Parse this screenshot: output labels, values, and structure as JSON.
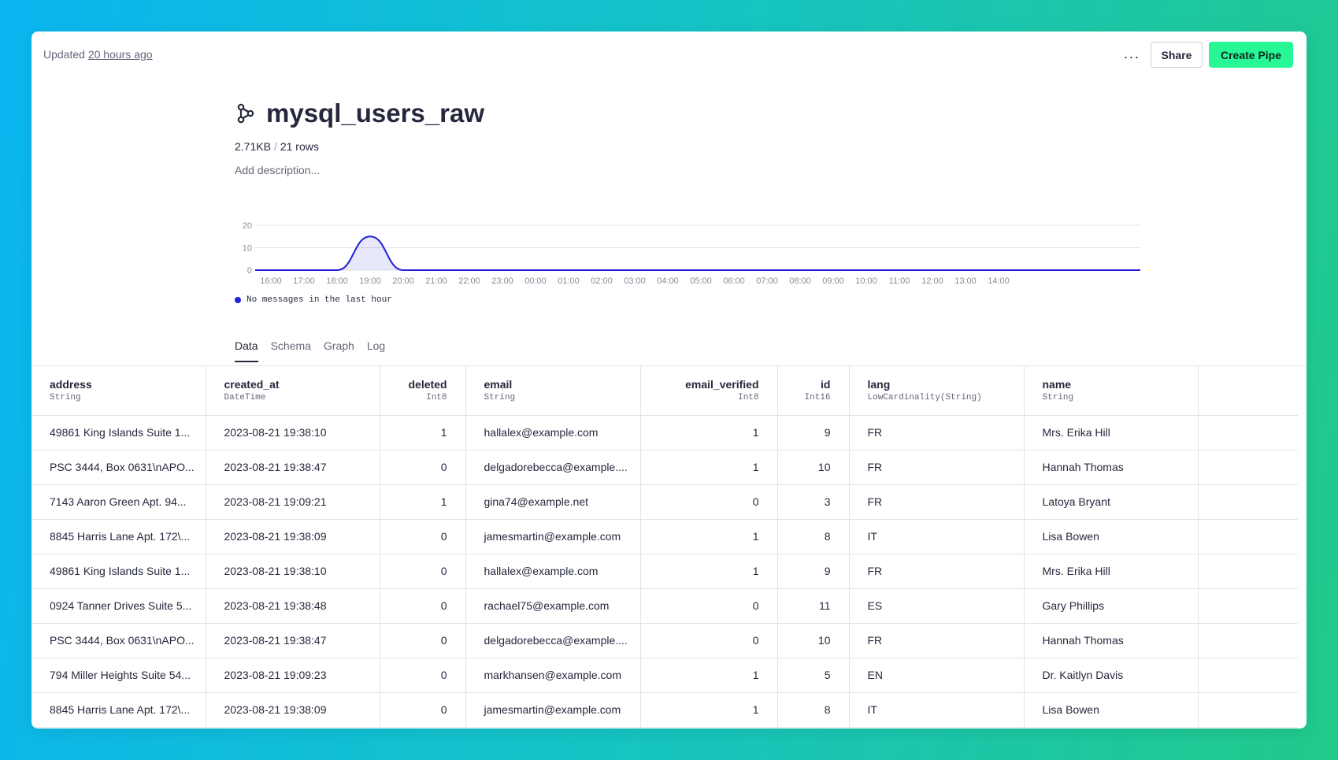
{
  "topbar": {
    "updated_prefix": "Updated",
    "updated_link": "20 hours ago",
    "more_label": "···",
    "share_label": "Share",
    "create_label": "Create Pipe"
  },
  "datasource": {
    "name": "mysql_users_raw",
    "size": "2.71KB",
    "separator": "/",
    "rows": "21 rows",
    "description_placeholder": "Add description..."
  },
  "chart_data": {
    "type": "area",
    "x": [
      "16:00",
      "17:00",
      "18:00",
      "19:00",
      "20:00",
      "21:00",
      "22:00",
      "23:00",
      "00:00",
      "01:00",
      "02:00",
      "03:00",
      "04:00",
      "05:00",
      "06:00",
      "07:00",
      "08:00",
      "09:00",
      "10:00",
      "11:00",
      "12:00",
      "13:00",
      "14:00"
    ],
    "y_ticks": [
      0,
      10,
      20
    ],
    "ylim": [
      0,
      20
    ],
    "series": [
      {
        "values": [
          0,
          0,
          0,
          15,
          0,
          0,
          0,
          0,
          0,
          0,
          0,
          0,
          0,
          0,
          0,
          0,
          0,
          0,
          0,
          0,
          0,
          0,
          0
        ],
        "color": "#2121d9"
      }
    ],
    "grid": true
  },
  "legend": {
    "text": "No messages in the last hour",
    "color": "#2121d9"
  },
  "tabs": [
    {
      "label": "Data",
      "active": true
    },
    {
      "label": "Schema",
      "active": false
    },
    {
      "label": "Graph",
      "active": false
    },
    {
      "label": "Log",
      "active": false
    }
  ],
  "table": {
    "columns": [
      {
        "name": "address",
        "type": "String",
        "align": "left"
      },
      {
        "name": "created_at",
        "type": "DateTime",
        "align": "left"
      },
      {
        "name": "deleted",
        "type": "Int8",
        "align": "right"
      },
      {
        "name": "email",
        "type": "String",
        "align": "left"
      },
      {
        "name": "email_verified",
        "type": "Int8",
        "align": "right"
      },
      {
        "name": "id",
        "type": "Int16",
        "align": "right"
      },
      {
        "name": "lang",
        "type": "LowCardinality(String)",
        "align": "left"
      },
      {
        "name": "name",
        "type": "String",
        "align": "left"
      }
    ],
    "rows": [
      [
        "49861 King Islands Suite 1...",
        "2023-08-21 19:38:10",
        "1",
        "hallalex@example.com",
        "1",
        "9",
        "FR",
        "Mrs. Erika Hill"
      ],
      [
        "PSC 3444, Box 0631\\nAPO...",
        "2023-08-21 19:38:47",
        "0",
        "delgadorebecca@example....",
        "1",
        "10",
        "FR",
        "Hannah Thomas"
      ],
      [
        "7143 Aaron Green Apt. 94...",
        "2023-08-21 19:09:21",
        "1",
        "gina74@example.net",
        "0",
        "3",
        "FR",
        "Latoya Bryant"
      ],
      [
        "8845 Harris Lane Apt. 172\\...",
        "2023-08-21 19:38:09",
        "0",
        "jamesmartin@example.com",
        "1",
        "8",
        "IT",
        "Lisa Bowen"
      ],
      [
        "49861 King Islands Suite 1...",
        "2023-08-21 19:38:10",
        "0",
        "hallalex@example.com",
        "1",
        "9",
        "FR",
        "Mrs. Erika Hill"
      ],
      [
        "0924 Tanner Drives Suite 5...",
        "2023-08-21 19:38:48",
        "0",
        "rachael75@example.com",
        "0",
        "11",
        "ES",
        "Gary Phillips"
      ],
      [
        "PSC 3444, Box 0631\\nAPO...",
        "2023-08-21 19:38:47",
        "0",
        "delgadorebecca@example....",
        "0",
        "10",
        "FR",
        "Hannah Thomas"
      ],
      [
        "794 Miller Heights Suite 54...",
        "2023-08-21 19:09:23",
        "0",
        "markhansen@example.com",
        "1",
        "5",
        "EN",
        "Dr. Kaitlyn Davis"
      ],
      [
        "8845 Harris Lane Apt. 172\\...",
        "2023-08-21 19:38:09",
        "0",
        "jamesmartin@example.com",
        "1",
        "8",
        "IT",
        "Lisa Bowen"
      ]
    ]
  }
}
